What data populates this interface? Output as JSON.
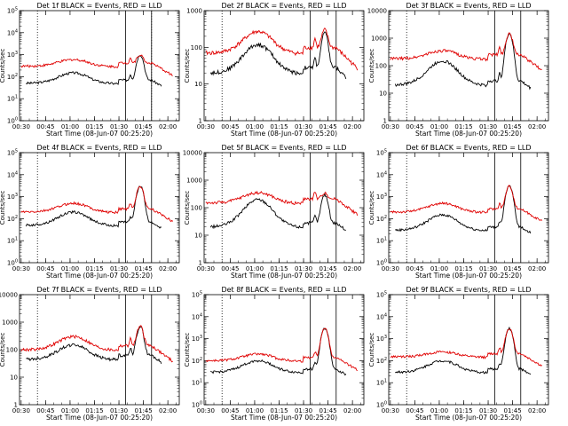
{
  "colors": {
    "events": "#000000",
    "lld": "#e00000",
    "axis": "#000000"
  },
  "chart_data": [
    {
      "type": "line",
      "title": "Det 1f BLACK = Events, RED = LLD",
      "xlabel": "Start Time (08-Jun-07 00:25:20)",
      "ylabel": "Counts/sec",
      "xticks": [
        "00:30",
        "00:45",
        "01:00",
        "01:15",
        "01:30",
        "01:45",
        "02:00"
      ],
      "ylog": true,
      "ylim": [
        1,
        100000
      ],
      "yticks": [
        "10^0",
        "10^1",
        "10^2",
        "10^3",
        "10^4",
        "10^5"
      ],
      "vlines_solid": [
        "01:34",
        "01:50"
      ],
      "vlines_dotted": [
        "00:40",
        "01:50"
      ],
      "series": [
        {
          "name": "Events",
          "color": "black",
          "shape": {
            "start": "00:33",
            "end": "01:56",
            "base": 50,
            "hump": 150,
            "flare": 1000
          }
        },
        {
          "name": "LLD",
          "color": "red",
          "shape": {
            "start": "00:30",
            "end": "02:03",
            "base": 300,
            "hump": 600,
            "flare": 1000
          }
        }
      ]
    },
    {
      "type": "line",
      "title": "Det 2f BLACK = Events, RED = LLD",
      "xlabel": "Start Time (08-Jun-07 00:25:20)",
      "ylabel": "Counts/sec",
      "xticks": [
        "00:30",
        "00:45",
        "01:00",
        "01:15",
        "01:30",
        "01:45",
        "02:00"
      ],
      "ylog": true,
      "ylim": [
        1,
        1000
      ],
      "yticks": [
        "1",
        "10",
        "100",
        "1000"
      ],
      "vlines_solid": [
        "01:34",
        "01:50"
      ],
      "vlines_dotted": [
        "00:40"
      ],
      "series": [
        {
          "name": "Events",
          "color": "black",
          "shape": {
            "start": "00:33",
            "end": "01:56",
            "base": 20,
            "hump": 120,
            "flare": 250
          }
        },
        {
          "name": "LLD",
          "color": "red",
          "shape": {
            "start": "00:30",
            "end": "02:03",
            "base": 70,
            "hump": 270,
            "flare": 300
          }
        }
      ]
    },
    {
      "type": "line",
      "title": "Det 3f BLACK = Events, RED = LLD",
      "xlabel": "Start Time (08-Jun-07 00:25:20)",
      "ylabel": "Counts/sec",
      "xticks": [
        "00:30",
        "00:45",
        "01:00",
        "01:15",
        "01:30",
        "01:45",
        "02:00"
      ],
      "ylog": true,
      "ylim": [
        1,
        10000
      ],
      "yticks": [
        "1",
        "10",
        "100",
        "1000",
        "10000"
      ],
      "vlines_solid": [
        "01:34",
        "01:50"
      ],
      "vlines_dotted": [
        "00:40"
      ],
      "series": [
        {
          "name": "Events",
          "color": "black",
          "shape": {
            "start": "00:33",
            "end": "01:56",
            "base": 20,
            "hump": 150,
            "flare": 1500
          }
        },
        {
          "name": "LLD",
          "color": "red",
          "shape": {
            "start": "00:30",
            "end": "02:03",
            "base": 180,
            "hump": 350,
            "flare": 1500
          }
        }
      ]
    },
    {
      "type": "line",
      "title": "Det 4f BLACK = Events, RED = LLD",
      "xlabel": "Start Time (08-Jun-07 00:25:20)",
      "ylabel": "Counts/sec",
      "xticks": [
        "00:30",
        "00:45",
        "01:00",
        "01:15",
        "01:30",
        "01:45",
        "02:00"
      ],
      "ylog": true,
      "ylim": [
        1,
        100000
      ],
      "yticks": [
        "10^0",
        "10^1",
        "10^2",
        "10^3",
        "10^4",
        "10^5"
      ],
      "vlines_solid": [
        "01:34",
        "01:50"
      ],
      "vlines_dotted": [
        "00:40"
      ],
      "series": [
        {
          "name": "Events",
          "color": "black",
          "shape": {
            "start": "00:33",
            "end": "01:56",
            "base": 50,
            "hump": 200,
            "flare": 3000
          }
        },
        {
          "name": "LLD",
          "color": "red",
          "shape": {
            "start": "00:30",
            "end": "02:03",
            "base": 200,
            "hump": 500,
            "flare": 3000
          }
        }
      ]
    },
    {
      "type": "line",
      "title": "Det 5f BLACK = Events, RED = LLD",
      "xlabel": "Start Time (08-Jun-07 00:25:20)",
      "ylabel": "Counts/sec",
      "xticks": [
        "00:30",
        "00:45",
        "01:00",
        "01:15",
        "01:30",
        "01:45",
        "02:00"
      ],
      "ylog": true,
      "ylim": [
        1,
        10000
      ],
      "yticks": [
        "1",
        "10",
        "100",
        "1000",
        "10000"
      ],
      "vlines_solid": [
        "01:34",
        "01:50"
      ],
      "vlines_dotted": [
        "00:40"
      ],
      "series": [
        {
          "name": "Events",
          "color": "black",
          "shape": {
            "start": "00:33",
            "end": "01:56",
            "base": 20,
            "hump": 200,
            "flare": 300
          }
        },
        {
          "name": "LLD",
          "color": "red",
          "shape": {
            "start": "00:30",
            "end": "02:03",
            "base": 150,
            "hump": 350,
            "flare": 350
          }
        }
      ]
    },
    {
      "type": "line",
      "title": "Det 6f BLACK = Events, RED = LLD",
      "xlabel": "Start Time (08-Jun-07 00:25:20)",
      "ylabel": "Counts/sec",
      "xticks": [
        "00:30",
        "00:45",
        "01:00",
        "01:15",
        "01:30",
        "01:45",
        "02:00"
      ],
      "ylog": true,
      "ylim": [
        1,
        100000
      ],
      "yticks": [
        "10^0",
        "10^1",
        "10^2",
        "10^3",
        "10^4",
        "10^5"
      ],
      "vlines_solid": [
        "01:34",
        "01:50"
      ],
      "vlines_dotted": [
        "00:40"
      ],
      "series": [
        {
          "name": "Events",
          "color": "black",
          "shape": {
            "start": "00:33",
            "end": "01:56",
            "base": 30,
            "hump": 150,
            "flare": 3000
          }
        },
        {
          "name": "LLD",
          "color": "red",
          "shape": {
            "start": "00:30",
            "end": "02:03",
            "base": 200,
            "hump": 500,
            "flare": 3000
          }
        }
      ]
    },
    {
      "type": "line",
      "title": "Det 7f BLACK = Events, RED = LLD",
      "xlabel": "Start Time (08-Jun-07 00:25:20)",
      "ylabel": "Counts/sec",
      "xticks": [
        "00:30",
        "00:45",
        "01:00",
        "01:15",
        "01:30",
        "01:45",
        "02:00"
      ],
      "ylog": true,
      "ylim": [
        1,
        10000
      ],
      "yticks": [
        "1",
        "10",
        "100",
        "1000",
        "10000"
      ],
      "vlines_solid": [
        "01:34",
        "01:50"
      ],
      "vlines_dotted": [
        "00:40"
      ],
      "series": [
        {
          "name": "Events",
          "color": "black",
          "shape": {
            "start": "00:33",
            "end": "01:56",
            "base": 45,
            "hump": 150,
            "flare": 700
          }
        },
        {
          "name": "LLD",
          "color": "red",
          "shape": {
            "start": "00:30",
            "end": "02:03",
            "base": 100,
            "hump": 300,
            "flare": 700
          }
        }
      ]
    },
    {
      "type": "line",
      "title": "Det 8f BLACK = Events, RED = LLD",
      "xlabel": "Start Time (08-Jun-07 00:25:20)",
      "ylabel": "Counts/sec",
      "xticks": [
        "00:30",
        "00:45",
        "01:00",
        "01:15",
        "01:30",
        "01:45",
        "02:00"
      ],
      "ylog": true,
      "ylim": [
        1,
        100000
      ],
      "yticks": [
        "10^0",
        "10^1",
        "10^2",
        "10^3",
        "10^4",
        "10^5"
      ],
      "vlines_solid": [
        "01:34",
        "01:50"
      ],
      "vlines_dotted": [
        "00:40"
      ],
      "series": [
        {
          "name": "Events",
          "color": "black",
          "shape": {
            "start": "00:33",
            "end": "01:56",
            "base": 30,
            "hump": 100,
            "flare": 3000
          }
        },
        {
          "name": "LLD",
          "color": "red",
          "shape": {
            "start": "00:30",
            "end": "02:03",
            "base": 100,
            "hump": 200,
            "flare": 3000
          }
        }
      ]
    },
    {
      "type": "line",
      "title": "Det 9f BLACK = Events, RED = LLD",
      "xlabel": "Start Time (08-Jun-07 00:25:20)",
      "ylabel": "Counts/sec",
      "xticks": [
        "00:30",
        "00:45",
        "01:00",
        "01:15",
        "01:30",
        "01:45",
        "02:00"
      ],
      "ylog": true,
      "ylim": [
        1,
        100000
      ],
      "yticks": [
        "10^0",
        "10^1",
        "10^2",
        "10^3",
        "10^4",
        "10^5"
      ],
      "vlines_solid": [
        "01:34",
        "01:50"
      ],
      "vlines_dotted": [
        "00:40"
      ],
      "series": [
        {
          "name": "Events",
          "color": "black",
          "shape": {
            "start": "00:33",
            "end": "01:56",
            "base": 30,
            "hump": 100,
            "flare": 3000
          }
        },
        {
          "name": "LLD",
          "color": "red",
          "shape": {
            "start": "00:30",
            "end": "02:03",
            "base": 150,
            "hump": 250,
            "flare": 3000
          }
        }
      ]
    }
  ]
}
